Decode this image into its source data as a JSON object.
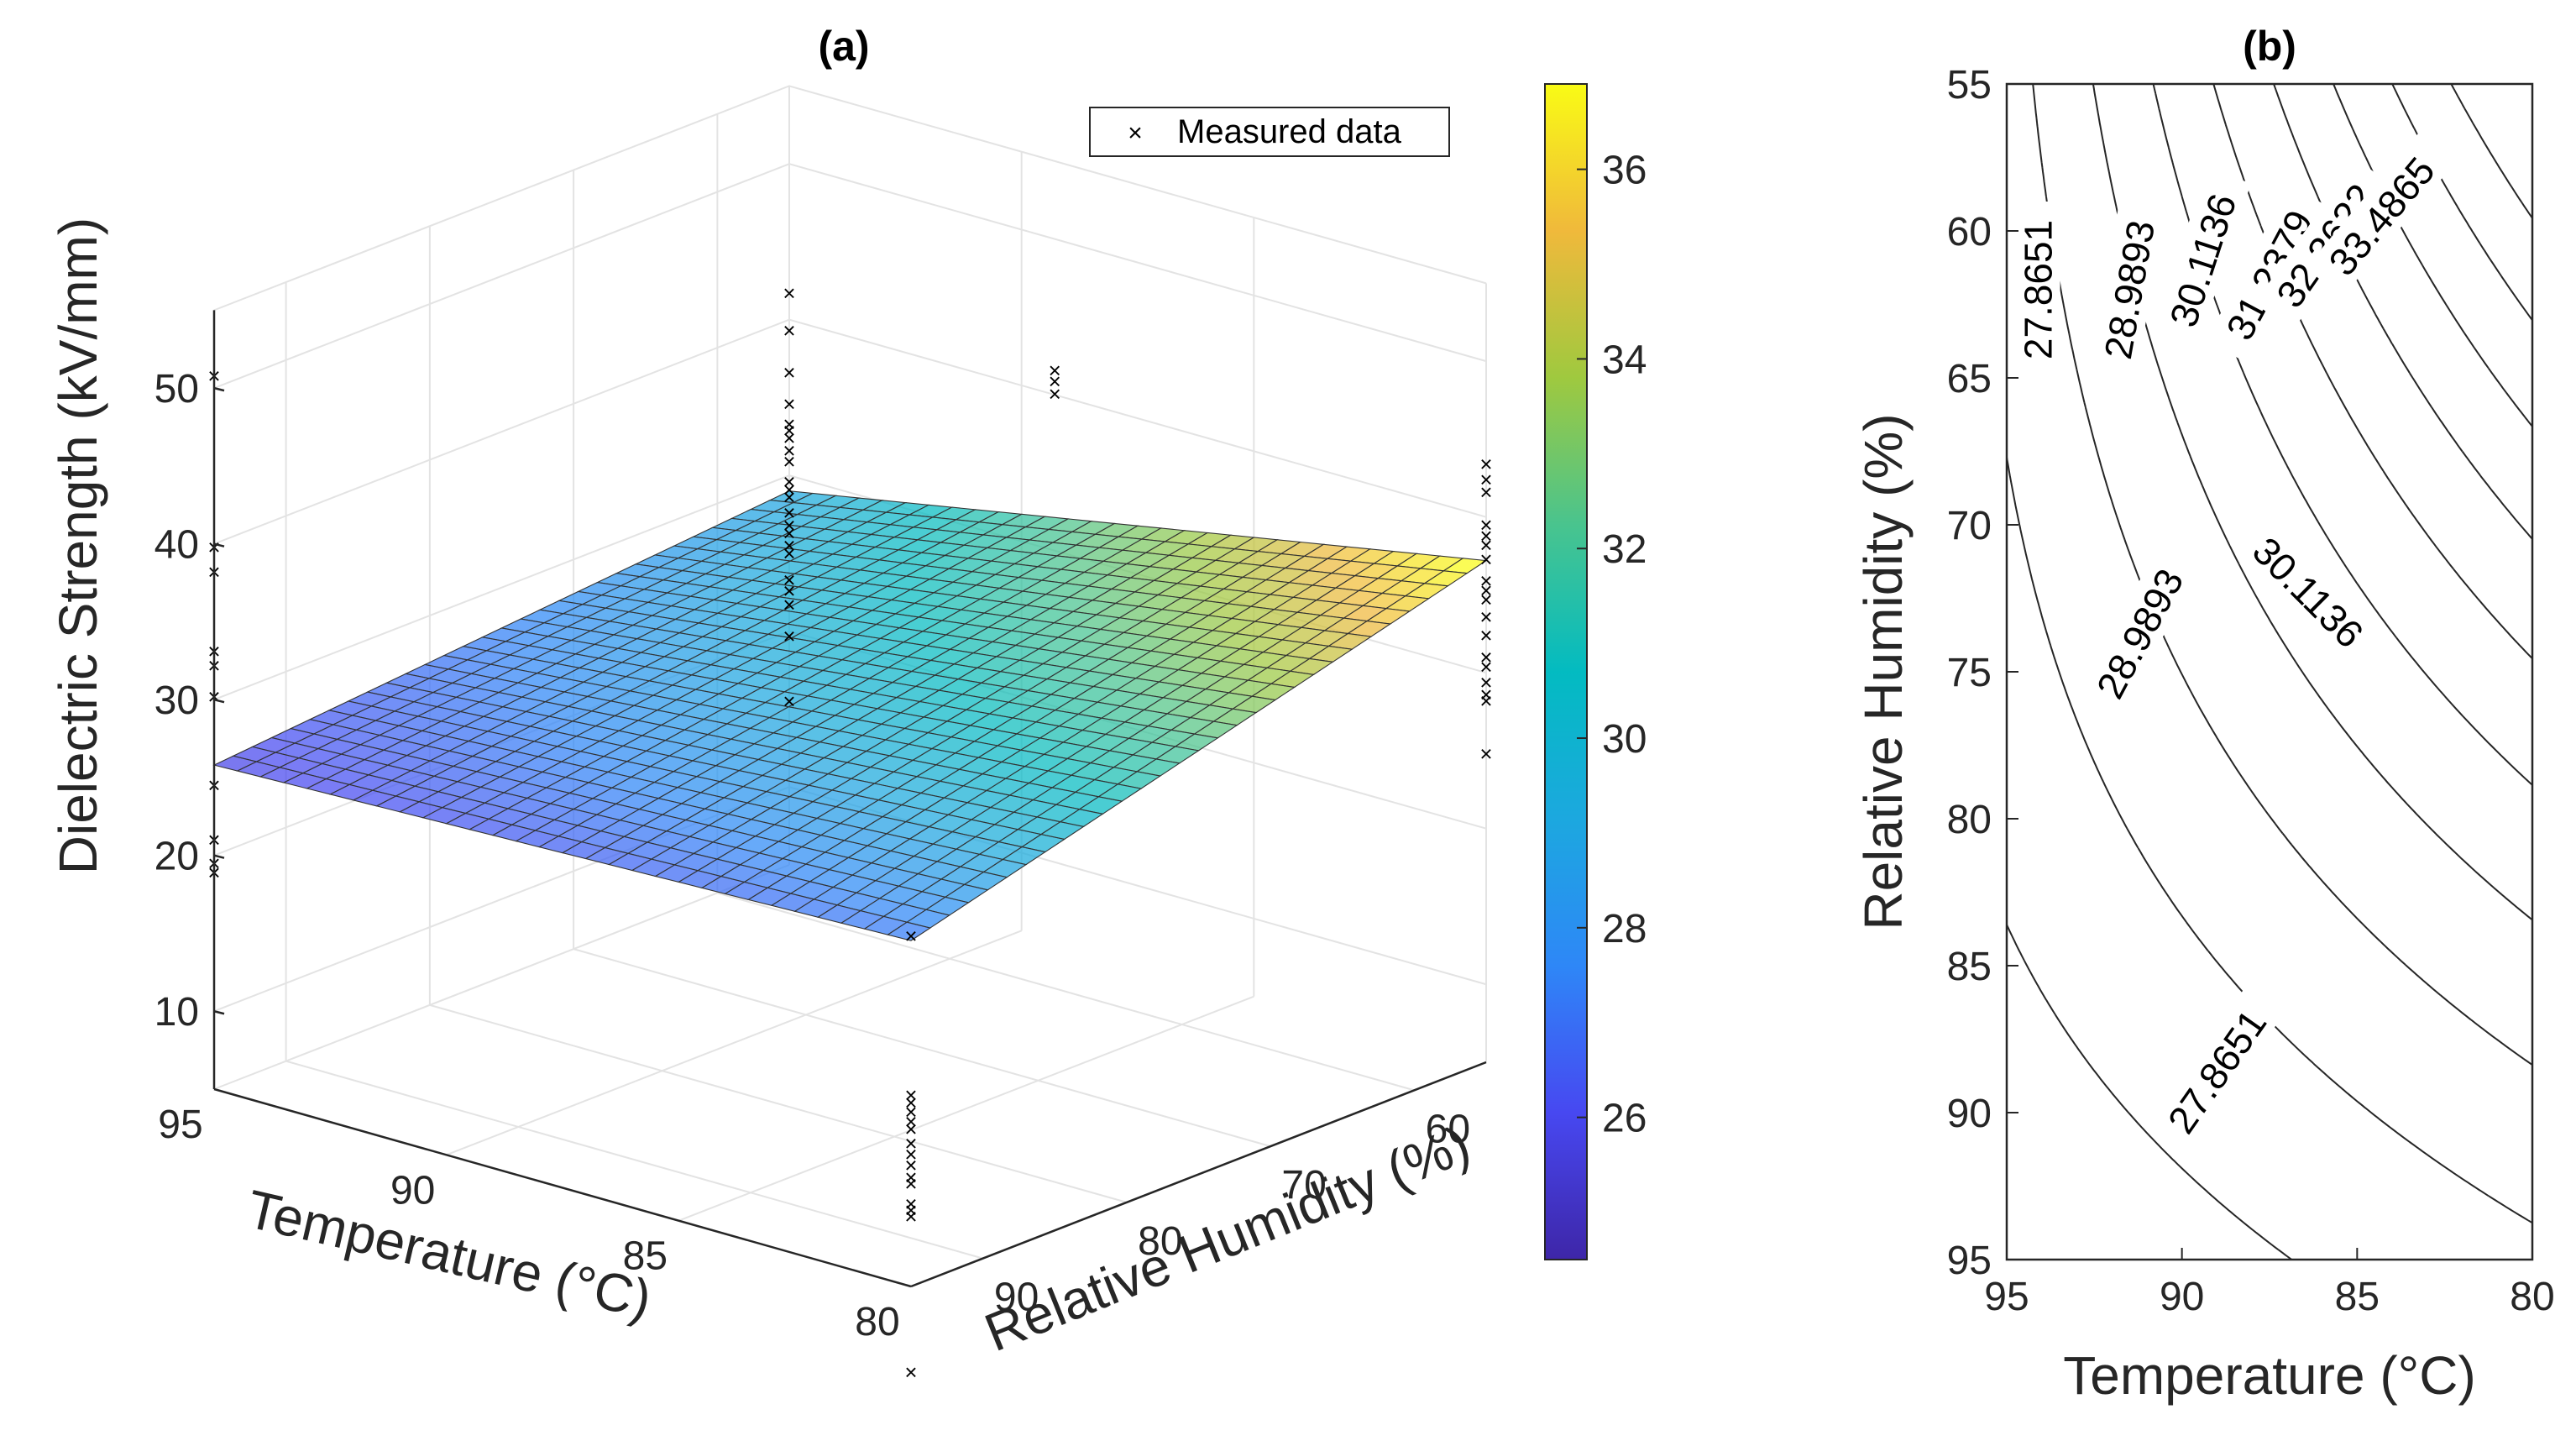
{
  "chart_data": [
    {
      "panel": "a",
      "type": "surface3d",
      "title": "(a)",
      "xlabel": "Relative Humidity (%)",
      "ylabel": "Temperature (°C)",
      "zlabel": "Dielectric Strength (kV/mm)",
      "rh_ticks": [
        "60",
        "70",
        "80",
        "90"
      ],
      "temp_ticks": [
        "95",
        "90",
        "85",
        "80"
      ],
      "z_ticks": [
        "10",
        "20",
        "30",
        "40",
        "50"
      ],
      "rh_range": [
        55,
        95
      ],
      "temp_range": [
        80,
        95
      ],
      "z_range": [
        5,
        55
      ],
      "surface_corners": {
        "rh55_t95": 29.0,
        "rh95_t95": 25.8,
        "rh55_t80": 37.2,
        "rh95_t80": 27.2
      },
      "legend": {
        "label": "Measured data",
        "position": "top-right"
      },
      "colorbar": {
        "ticks": [
          "26",
          "28",
          "30",
          "32",
          "34",
          "36"
        ],
        "range": [
          24.5,
          36.9
        ],
        "colormap": "parula"
      },
      "measured_points": [
        {
          "rh": 55,
          "temp": 95,
          "values": [
            41.7,
            39.3,
            36.6,
            34.6,
            33.3,
            32.9,
            32.4,
            31.6,
            30.9,
            29.6,
            29.1,
            28.6,
            27.6,
            26.8,
            26.3,
            25.5,
            25.0,
            23.3,
            22.6,
            21.7,
            19.7,
            15.5
          ]
        },
        {
          "rh": 95,
          "temp": 95,
          "values": [
            50.8,
            39.8,
            38.2,
            33.1,
            32.2,
            30.2,
            24.5,
            21.0,
            19.5,
            18.9
          ]
        },
        {
          "rh": 55,
          "temp": 80,
          "values": [
            43.4,
            42.4,
            41.6,
            39.5,
            38.8,
            38.2,
            37.3,
            35.9,
            35.3,
            34.7,
            33.6,
            32.4,
            31.0,
            30.4,
            29.4,
            28.6,
            28.2,
            24.8
          ]
        },
        {
          "rh": 95,
          "temp": 80,
          "values": [
            27.5,
            17.3,
            16.8,
            16.2,
            15.6,
            15.1,
            14.2,
            13.5,
            12.8,
            12.0,
            11.6,
            10.3,
            9.9,
            9.5,
            -0.5
          ]
        },
        {
          "rh": 85,
          "temp": 80,
          "values": [
            60.2,
            59.5,
            58.7
          ]
        }
      ]
    },
    {
      "panel": "b",
      "type": "contour",
      "title": "(b)",
      "xlabel": "Temperature (°C)",
      "ylabel": "Relative Humidity (%)",
      "x_ticks": [
        "95",
        "90",
        "85",
        "80"
      ],
      "y_ticks": [
        "55",
        "60",
        "65",
        "70",
        "75",
        "80",
        "85",
        "90",
        "95"
      ],
      "xlim": [
        95,
        80
      ],
      "ylim": [
        55,
        95
      ],
      "contour_labels": [
        {
          "text": "27.8651",
          "temp": 94.1,
          "rh": 62.0
        },
        {
          "text": "28.9893",
          "temp": 91.5,
          "rh": 62.0
        },
        {
          "text": "30.1136",
          "temp": 89.4,
          "rh": 61.0
        },
        {
          "text": "31.2379",
          "temp": 87.5,
          "rh": 61.5
        },
        {
          "text": "32.3622",
          "temp": 85.9,
          "rh": 60.5
        },
        {
          "text": "33.4865",
          "temp": 84.3,
          "rh": 59.5
        },
        {
          "text": "28.9893",
          "temp": 91.2,
          "rh": 73.7
        },
        {
          "text": "30.1136",
          "temp": 86.4,
          "rh": 72.3
        },
        {
          "text": "27.8651",
          "temp": 89.0,
          "rh": 88.6
        }
      ]
    }
  ]
}
